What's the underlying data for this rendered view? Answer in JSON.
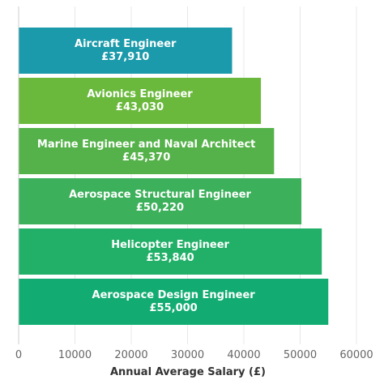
{
  "chart_data": {
    "type": "bar",
    "orientation": "horizontal",
    "categories": [
      "Aircraft Engineer",
      "Avionics Engineer",
      "Marine Engineer and Naval Architect",
      "Aerospace Structural Engineer",
      "Helicopter Engineer",
      "Aerospace Design Engineer"
    ],
    "values": [
      37910,
      43030,
      45370,
      50220,
      53840,
      55000
    ],
    "value_labels": [
      "£37,910",
      "£43,030",
      "£45,370",
      "£50,220",
      "£53,840",
      "£55,000"
    ],
    "colors": [
      "#1a9aaa",
      "#6ab93c",
      "#55b24a",
      "#3cb05a",
      "#22b068",
      "#12ac72"
    ],
    "xlabel": "Annual Average Salary (£)",
    "ylabel": "",
    "xlim": [
      0,
      60000
    ],
    "xticks": [
      0,
      10000,
      20000,
      30000,
      40000,
      50000,
      60000
    ],
    "xtick_labels": [
      "0",
      "10000",
      "20000",
      "30000",
      "40000",
      "50000",
      "60000"
    ],
    "grid": true
  }
}
